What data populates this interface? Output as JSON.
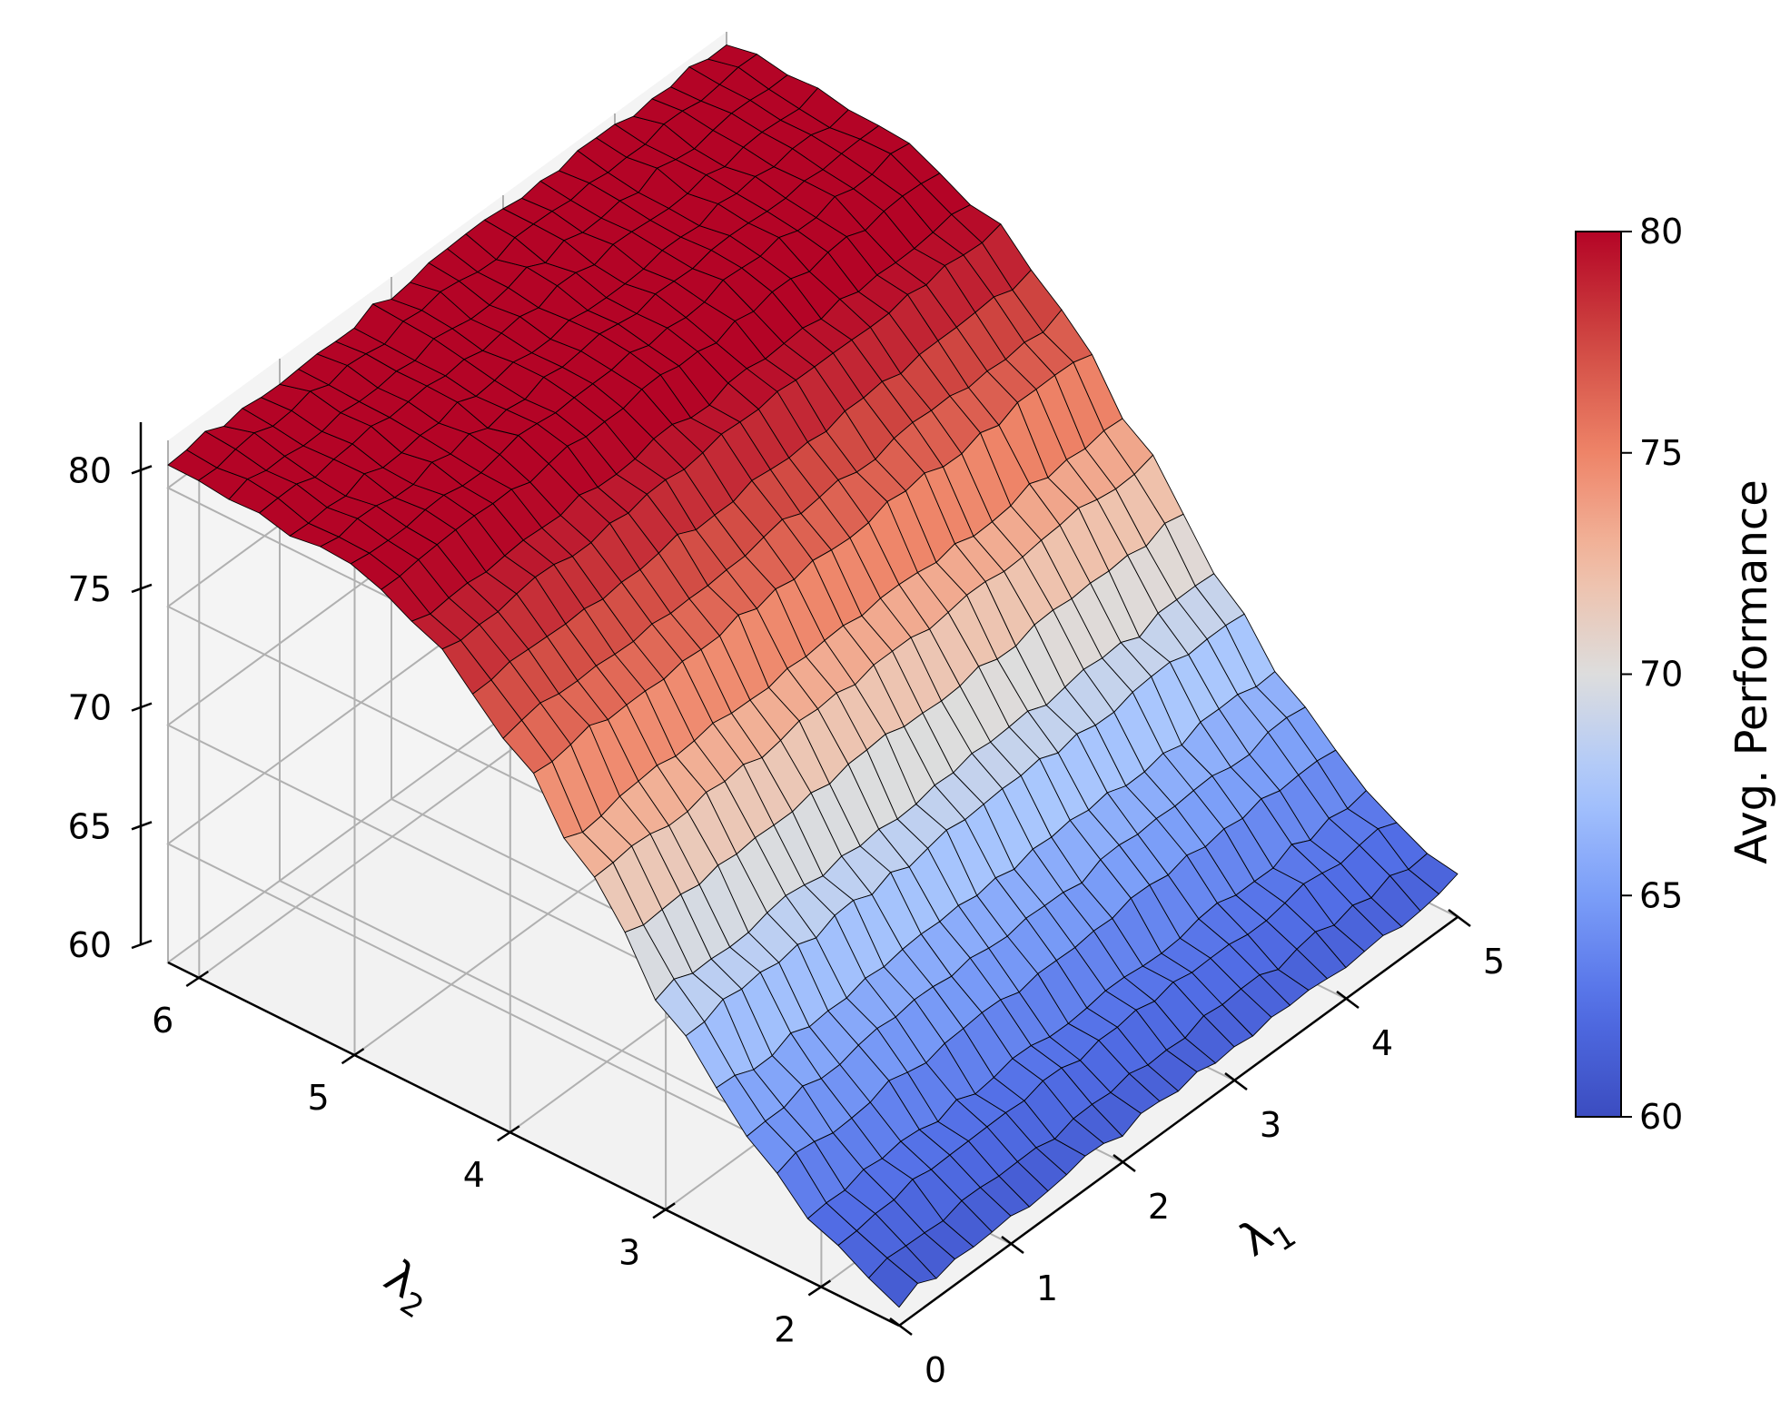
{
  "chart_data": {
    "type": "surface",
    "title": "",
    "colormap": "coolwarm",
    "x_axis": {
      "label": "λ1",
      "ticks": [
        "0",
        "1",
        "2",
        "3",
        "4",
        "5"
      ],
      "range": [
        0,
        5
      ]
    },
    "y_axis": {
      "label": "λ2",
      "ticks": [
        "2",
        "3",
        "4",
        "5",
        "6"
      ],
      "range": [
        1.5,
        6.2
      ]
    },
    "z_axis": {
      "label": "",
      "ticks": [
        "60",
        "65",
        "70",
        "75",
        "80"
      ],
      "range": [
        60,
        82
      ]
    },
    "colorbar": {
      "label": "Avg. Performance",
      "ticks": [
        "60",
        "65",
        "70",
        "75",
        "80"
      ],
      "range": [
        60,
        80
      ]
    },
    "grid": true,
    "surface_note_values": {
      "lambda2_profile": [
        {
          "lambda2": 1.5,
          "value": 61.0
        },
        {
          "lambda2": 2.0,
          "value": 62.5
        },
        {
          "lambda2": 2.5,
          "value": 65.0
        },
        {
          "lambda2": 3.0,
          "value": 68.5
        },
        {
          "lambda2": 3.5,
          "value": 72.5
        },
        {
          "lambda2": 4.0,
          "value": 76.5
        },
        {
          "lambda2": 4.5,
          "value": 79.0
        },
        {
          "lambda2": 5.0,
          "value": 80.5
        },
        {
          "lambda2": 6.2,
          "value": 81.0
        }
      ],
      "lambda1_effect": "nearly flat across λ1 (slight increase)"
    }
  }
}
